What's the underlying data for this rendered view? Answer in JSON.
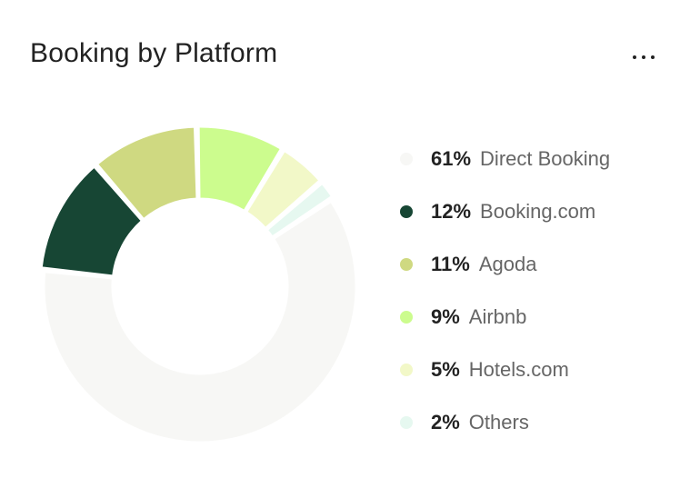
{
  "header": {
    "title": "Booking by Platform",
    "menu_icon": "more-horizontal-icon"
  },
  "chart_data": {
    "type": "pie",
    "title": "Booking by Platform",
    "donut": true,
    "categories": [
      "Direct Booking",
      "Booking.com",
      "Agoda",
      "Airbnb",
      "Hotels.com",
      "Others"
    ],
    "values": [
      61,
      12,
      11,
      9,
      5,
      2
    ],
    "colors": [
      "#f7f7f5",
      "#174634",
      "#cfd981",
      "#ccfc8e",
      "#f2f8c8",
      "#e6f8f0"
    ],
    "legend_position": "right"
  },
  "legend": [
    {
      "percent": "61%",
      "label": "Direct Booking"
    },
    {
      "percent": "12%",
      "label": "Booking.com"
    },
    {
      "percent": "11%",
      "label": "Agoda"
    },
    {
      "percent": "9%",
      "label": "Airbnb"
    },
    {
      "percent": "5%",
      "label": "Hotels.com"
    },
    {
      "percent": "2%",
      "label": "Others"
    }
  ]
}
